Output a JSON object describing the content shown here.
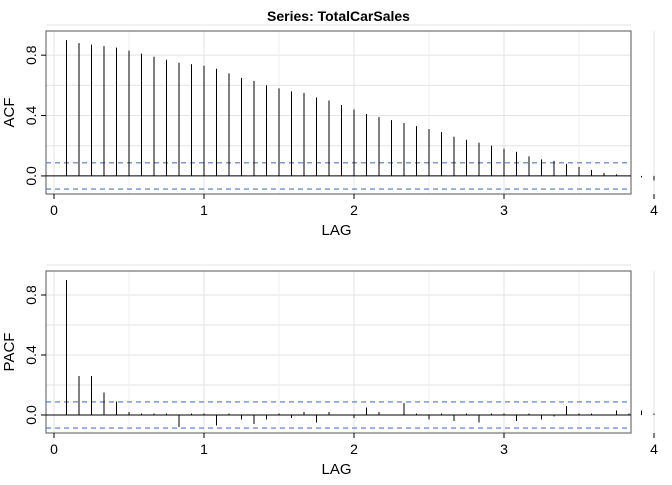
{
  "chart_data": [
    {
      "type": "bar",
      "title": "Series:  TotalCarSales",
      "xlabel": "LAG",
      "ylabel": "ACF",
      "xlim": [
        0,
        4.02
      ],
      "ylim": [
        -0.08,
        1.0
      ],
      "xticks": [
        "0",
        "1",
        "2",
        "3",
        "4"
      ],
      "xtick_values": [
        0,
        1,
        2,
        3,
        4
      ],
      "yticks": [
        "0.0",
        "0.4",
        "0.8"
      ],
      "ytick_values": [
        0,
        0.4,
        0.8
      ],
      "ci_bounds": [
        0.087,
        -0.087
      ],
      "grid": true,
      "lag": [
        0.0833,
        0.1667,
        0.25,
        0.3333,
        0.4167,
        0.5,
        0.5833,
        0.6667,
        0.75,
        0.8333,
        0.9167,
        1.0,
        1.0833,
        1.1667,
        1.25,
        1.3333,
        1.4167,
        1.5,
        1.5833,
        1.6667,
        1.75,
        1.8333,
        1.9167,
        2.0,
        2.0833,
        2.1667,
        2.25,
        2.3333,
        2.4167,
        2.5,
        2.5833,
        2.6667,
        2.75,
        2.8333,
        2.9167,
        3.0,
        3.0833,
        3.1667,
        3.25,
        3.3333,
        3.4167,
        3.5,
        3.5833,
        3.6667,
        3.75,
        3.8333,
        3.9167,
        4.0
      ],
      "values": [
        0.9,
        0.88,
        0.87,
        0.86,
        0.85,
        0.83,
        0.81,
        0.79,
        0.77,
        0.75,
        0.74,
        0.73,
        0.71,
        0.68,
        0.65,
        0.63,
        0.6,
        0.58,
        0.56,
        0.55,
        0.52,
        0.5,
        0.47,
        0.44,
        0.41,
        0.39,
        0.37,
        0.35,
        0.33,
        0.31,
        0.29,
        0.26,
        0.24,
        0.22,
        0.2,
        0.18,
        0.16,
        0.13,
        0.11,
        0.1,
        0.08,
        0.06,
        0.04,
        0.02,
        0.01,
        0.0,
        -0.01,
        -0.03
      ]
    },
    {
      "type": "bar",
      "title": "",
      "xlabel": "LAG",
      "ylabel": "PACF",
      "xlim": [
        0,
        4.02
      ],
      "ylim": [
        -0.08,
        1.0
      ],
      "xticks": [
        "0",
        "1",
        "2",
        "3",
        "4"
      ],
      "xtick_values": [
        0,
        1,
        2,
        3,
        4
      ],
      "yticks": [
        "0.0",
        "0.4",
        "0.8"
      ],
      "ytick_values": [
        0,
        0.4,
        0.8
      ],
      "ci_bounds": [
        0.087,
        -0.087
      ],
      "grid": true,
      "lag": [
        0.0833,
        0.1667,
        0.25,
        0.3333,
        0.4167,
        0.5,
        0.5833,
        0.6667,
        0.75,
        0.8333,
        0.9167,
        1.0,
        1.0833,
        1.1667,
        1.25,
        1.3333,
        1.4167,
        1.5,
        1.5833,
        1.6667,
        1.75,
        1.8333,
        1.9167,
        2.0,
        2.0833,
        2.1667,
        2.25,
        2.3333,
        2.4167,
        2.5,
        2.5833,
        2.6667,
        2.75,
        2.8333,
        2.9167,
        3.0,
        3.0833,
        3.1667,
        3.25,
        3.3333,
        3.4167,
        3.5,
        3.5833,
        3.6667,
        3.75,
        3.8333,
        3.9167,
        4.0
      ],
      "values": [
        0.9,
        0.26,
        0.26,
        0.15,
        0.09,
        0.02,
        0.01,
        0.01,
        0.01,
        -0.08,
        0.01,
        0.01,
        -0.07,
        0.01,
        -0.03,
        -0.06,
        -0.03,
        0.01,
        -0.02,
        0.02,
        -0.05,
        0.02,
        0.0,
        -0.02,
        0.05,
        0.02,
        0.0,
        0.08,
        0.01,
        -0.03,
        0.01,
        -0.04,
        0.01,
        -0.05,
        0.01,
        0.01,
        -0.04,
        0.01,
        -0.03,
        -0.01,
        0.06,
        0.01,
        0.01,
        0.0,
        0.03,
        0.01,
        0.03,
        0.01
      ]
    }
  ]
}
